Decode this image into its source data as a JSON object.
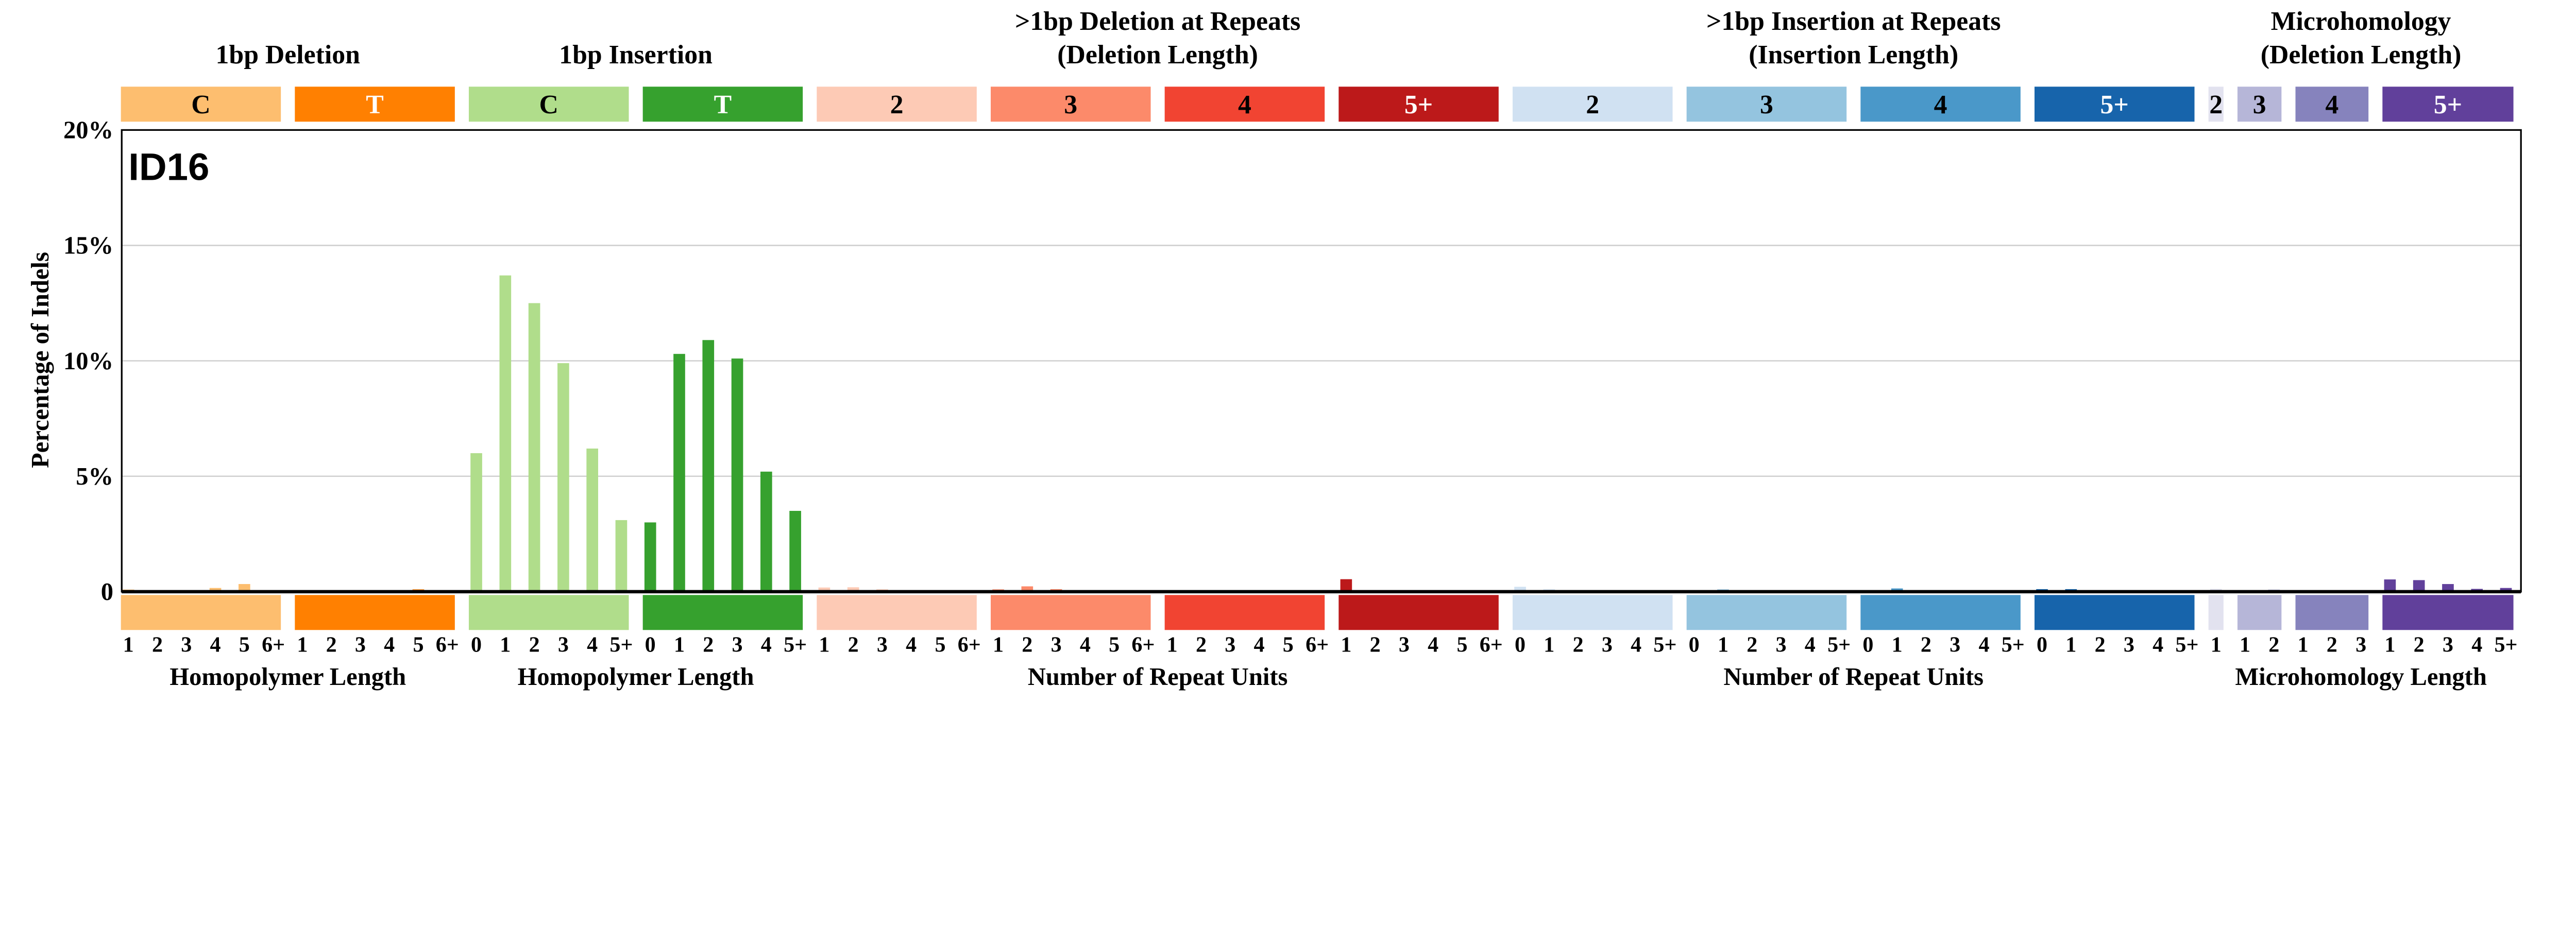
{
  "chart_data": {
    "type": "bar",
    "signature_label": "ID16",
    "ylabel": "Percentage of Indels",
    "ylim": [
      0,
      20
    ],
    "yticks": [
      {
        "v": 0,
        "label": "0"
      },
      {
        "v": 5,
        "label": "5%"
      },
      {
        "v": 10,
        "label": "10%"
      },
      {
        "v": 15,
        "label": "15%"
      },
      {
        "v": 20,
        "label": "20%"
      }
    ],
    "grid": true,
    "headers": [
      {
        "title": [
          "1bp Deletion"
        ],
        "span": [
          0,
          1
        ]
      },
      {
        "title": [
          "1bp Insertion"
        ],
        "span": [
          2,
          3
        ]
      },
      {
        "title": [
          ">1bp Deletion at Repeats",
          "(Deletion Length)"
        ],
        "span": [
          4,
          7
        ]
      },
      {
        "title": [
          ">1bp Insertion at Repeats",
          "(Insertion Length)"
        ],
        "span": [
          8,
          11
        ]
      },
      {
        "title": [
          "Microhomology",
          "(Deletion Length)"
        ],
        "span": [
          12,
          15
        ]
      }
    ],
    "xlabels": [
      {
        "text": "Homopolymer Length",
        "span": [
          0,
          1
        ]
      },
      {
        "text": "Homopolymer Length",
        "span": [
          2,
          3
        ]
      },
      {
        "text": "Number of Repeat Units",
        "span": [
          4,
          7
        ]
      },
      {
        "text": "Number of Repeat Units",
        "span": [
          8,
          11
        ]
      },
      {
        "text": "Microhomology Length",
        "span": [
          12,
          15
        ]
      }
    ],
    "groups": [
      {
        "label": "C",
        "color": "#FDBE6F",
        "text_color": "#000000",
        "ticks": [
          "1",
          "2",
          "3",
          "4",
          "5",
          "6+"
        ],
        "values": [
          0.09,
          0,
          0.01,
          0.16,
          0.33,
          0
        ]
      },
      {
        "label": "T",
        "color": "#FF8001",
        "text_color": "#ffffff",
        "ticks": [
          "1",
          "2",
          "3",
          "4",
          "5",
          "6+"
        ],
        "values": [
          0.06,
          0.01,
          0,
          0,
          0.1,
          0
        ]
      },
      {
        "label": "C",
        "color": "#B0DD8B",
        "text_color": "#000000",
        "ticks": [
          "0",
          "1",
          "2",
          "3",
          "4",
          "5+"
        ],
        "values": [
          6.0,
          13.7,
          12.5,
          9.9,
          6.2,
          3.1
        ]
      },
      {
        "label": "T",
        "color": "#36A12E",
        "text_color": "#ffffff",
        "ticks": [
          "0",
          "1",
          "2",
          "3",
          "4",
          "5+"
        ],
        "values": [
          3.0,
          10.3,
          10.9,
          10.1,
          5.2,
          3.5
        ]
      },
      {
        "label": "2",
        "color": "#FDCAB5",
        "text_color": "#000000",
        "ticks": [
          "1",
          "2",
          "3",
          "4",
          "5",
          "6+"
        ],
        "values": [
          0.18,
          0.19,
          0.1,
          0.04,
          0.01,
          0
        ]
      },
      {
        "label": "3",
        "color": "#FC8A6A",
        "text_color": "#000000",
        "ticks": [
          "1",
          "2",
          "3",
          "4",
          "5",
          "6+"
        ],
        "values": [
          0.1,
          0.23,
          0.11,
          0.02,
          0.005,
          0.005
        ]
      },
      {
        "label": "4",
        "color": "#F14432",
        "text_color": "#000000",
        "ticks": [
          "1",
          "2",
          "3",
          "4",
          "5",
          "6+"
        ],
        "values": [
          0.06,
          0.04,
          0.01,
          0,
          0,
          0
        ]
      },
      {
        "label": "5+",
        "color": "#BC191A",
        "text_color": "#ffffff",
        "ticks": [
          "1",
          "2",
          "3",
          "4",
          "5",
          "6+"
        ],
        "values": [
          0.54,
          0.01,
          0,
          0,
          0,
          0
        ]
      },
      {
        "label": "2",
        "color": "#D0E1F2",
        "text_color": "#000000",
        "ticks": [
          "0",
          "1",
          "2",
          "3",
          "4",
          "5+"
        ],
        "values": [
          0.21,
          0.1,
          0.06,
          0.01,
          0.01,
          0
        ]
      },
      {
        "label": "3",
        "color": "#94C4DF",
        "text_color": "#000000",
        "ticks": [
          "0",
          "1",
          "2",
          "3",
          "4",
          "5+"
        ],
        "values": [
          0.05,
          0.1,
          0.03,
          0.005,
          0.01,
          0.005
        ]
      },
      {
        "label": "4",
        "color": "#4A98C9",
        "text_color": "#000000",
        "ticks": [
          "0",
          "1",
          "2",
          "3",
          "4",
          "5+"
        ],
        "values": [
          0.05,
          0.14,
          0.01,
          0,
          0,
          0
        ]
      },
      {
        "label": "5+",
        "color": "#1764AB",
        "text_color": "#ffffff",
        "ticks": [
          "0",
          "1",
          "2",
          "3",
          "4",
          "5+"
        ],
        "values": [
          0.11,
          0.11,
          0,
          0,
          0,
          0
        ]
      },
      {
        "label": "2",
        "color": "#E2E2EF",
        "text_color": "#000000",
        "ticks": [
          "1"
        ],
        "values": [
          0.12
        ]
      },
      {
        "label": "3",
        "color": "#B6B6D8",
        "text_color": "#000000",
        "ticks": [
          "1",
          "2"
        ],
        "values": [
          0.06,
          0.09
        ]
      },
      {
        "label": "4",
        "color": "#8683BD",
        "text_color": "#000000",
        "ticks": [
          "1",
          "2",
          "3"
        ],
        "values": [
          0.04,
          0.04,
          0.04
        ]
      },
      {
        "label": "5+",
        "color": "#61409B",
        "text_color": "#ffffff",
        "ticks": [
          "1",
          "2",
          "3",
          "4",
          "5+"
        ],
        "values": [
          0.53,
          0.5,
          0.33,
          0.12,
          0.16
        ]
      }
    ]
  }
}
